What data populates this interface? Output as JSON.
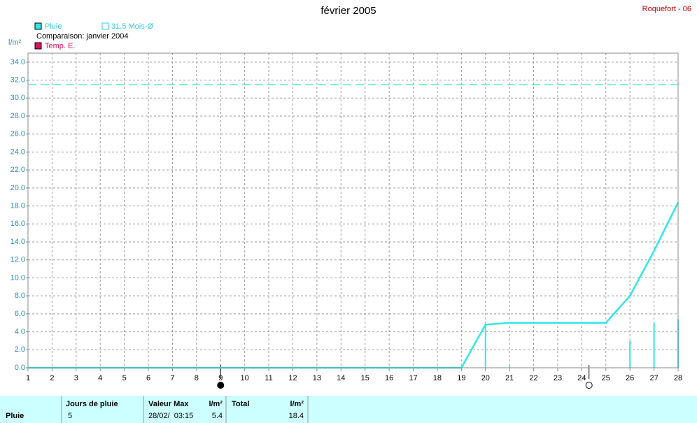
{
  "chart_data": {
    "type": "line",
    "title": "février 2005",
    "station": "Roquefort - 06",
    "ylabel": "l/m²",
    "comparison": "Comparaison: janvier 2004",
    "xlim": [
      1,
      28
    ],
    "xticks": [
      1,
      2,
      3,
      4,
      5,
      6,
      7,
      8,
      9,
      10,
      11,
      12,
      13,
      14,
      15,
      16,
      17,
      18,
      19,
      20,
      21,
      22,
      23,
      24,
      25,
      26,
      27,
      28
    ],
    "ylim": [
      0,
      35
    ],
    "yticks": [
      {
        "value": 0,
        "label": "0.0"
      },
      {
        "value": 2,
        "label": "2.0"
      },
      {
        "value": 4,
        "label": "4.0"
      },
      {
        "value": 6,
        "label": "6.0"
      },
      {
        "value": 8,
        "label": "8.0"
      },
      {
        "value": 10,
        "label": "10.0"
      },
      {
        "value": 12,
        "label": "12.0"
      },
      {
        "value": 14,
        "label": "14.0"
      },
      {
        "value": 16,
        "label": "16.0"
      },
      {
        "value": 18,
        "label": "18.0"
      },
      {
        "value": 20,
        "label": "20.0"
      },
      {
        "value": 22,
        "label": "22.0"
      },
      {
        "value": 24,
        "label": "24.0"
      },
      {
        "value": 26,
        "label": "26.0"
      },
      {
        "value": 28,
        "label": "28.0"
      },
      {
        "value": 30,
        "label": "30.0"
      },
      {
        "value": 32,
        "label": "32.0"
      },
      {
        "value": 34,
        "label": "34.0"
      }
    ],
    "grid": true,
    "series": [
      {
        "name": "Pluie",
        "color": "#33e6e6",
        "x": [
          1,
          19,
          20,
          21,
          25,
          26,
          27,
          28
        ],
        "values": [
          0,
          0,
          4.8,
          5.0,
          5.0,
          8.0,
          13.0,
          18.4
        ]
      },
      {
        "name": "Temp. E.",
        "color": "#d6145f",
        "x": [],
        "values": []
      }
    ],
    "daily_bars": {
      "color": "#33e6e6",
      "x": [
        20,
        21,
        26,
        27,
        28
      ],
      "values": [
        4.8,
        0.2,
        3.0,
        5.0,
        5.4
      ]
    },
    "reference": {
      "name": "31,5 Mois-Ø",
      "value": 31.5,
      "color": "#33e6e6"
    },
    "moon_phases": [
      {
        "x": 9,
        "filled": true
      },
      {
        "x": 24.3,
        "filled": false
      }
    ]
  },
  "table": {
    "columns": [
      "Jours de pluie",
      "Valeur Max",
      "l/m²",
      "Total",
      "l/m²"
    ],
    "rows": [
      [
        "Pluie",
        5,
        "28/02/  03:15",
        5.4,
        18.4
      ]
    ]
  }
}
